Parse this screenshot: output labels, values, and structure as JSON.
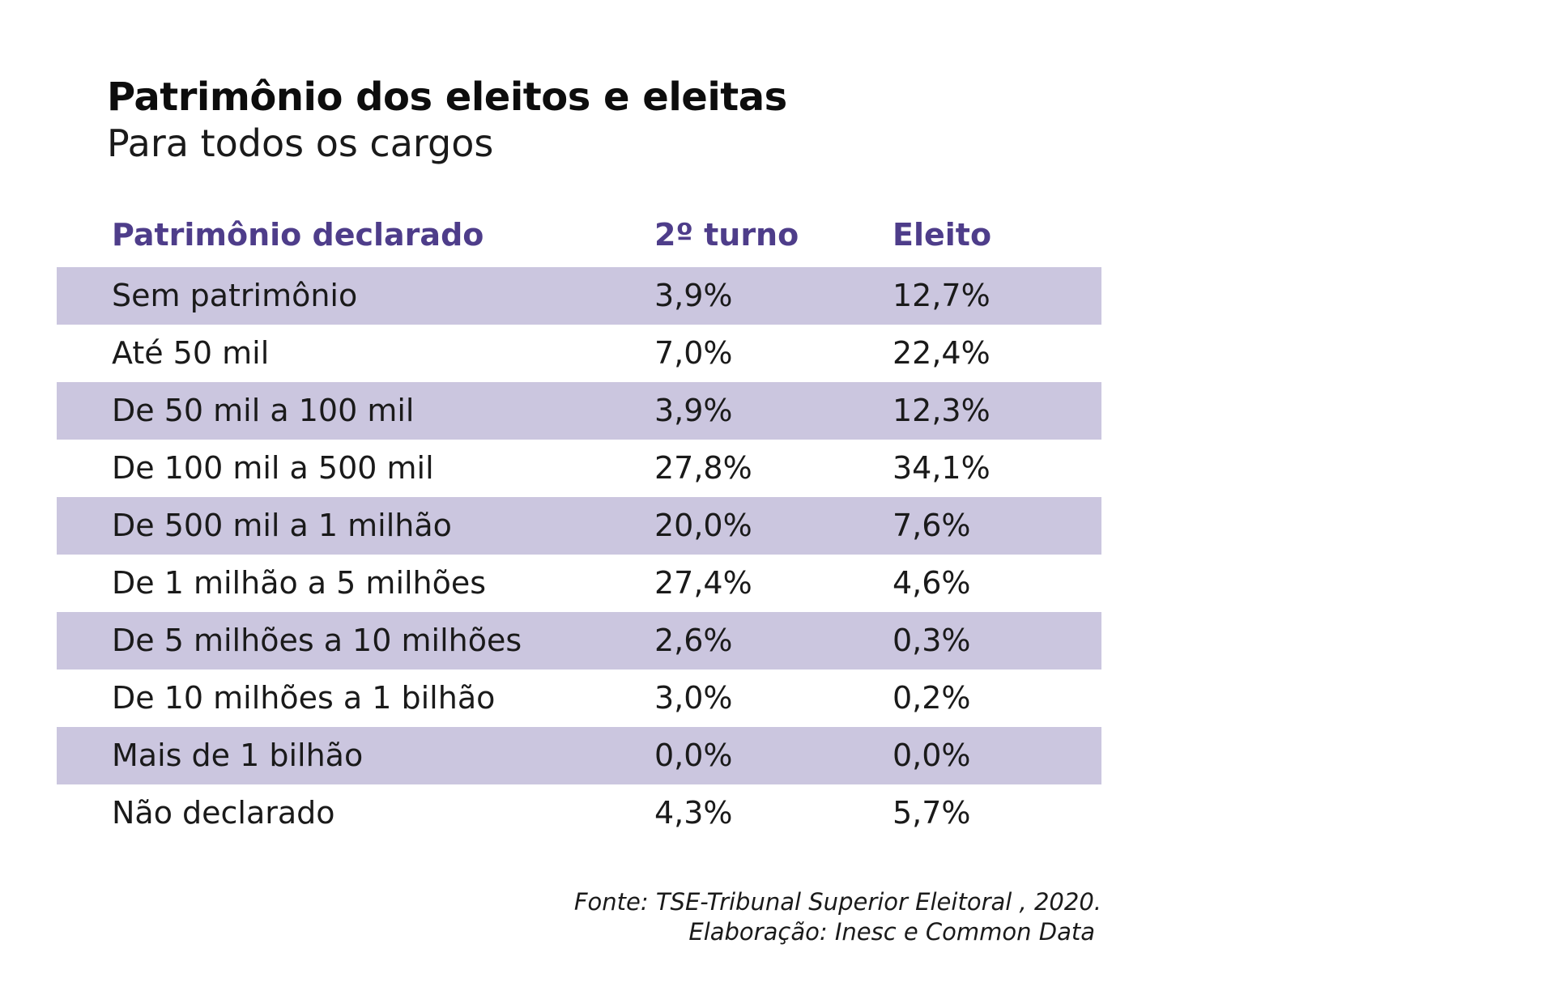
{
  "chart_data": {
    "type": "table",
    "title": "Patrimônio dos eleitos e eleitas",
    "subtitle": "Para todos os cargos",
    "columns": [
      "Patrimônio declarado",
      "2º turno",
      "Eleito"
    ],
    "rows": [
      {
        "label": "Sem patrimônio",
        "turno2": "3,9%",
        "eleito": "12,7%"
      },
      {
        "label": "Até 50 mil",
        "turno2": "7,0%",
        "eleito": "22,4%"
      },
      {
        "label": "De 50 mil a 100 mil",
        "turno2": "3,9%",
        "eleito": "12,3%"
      },
      {
        "label": "De 100 mil a 500 mil",
        "turno2": "27,8%",
        "eleito": "34,1%"
      },
      {
        "label": "De 500 mil a 1 milhão",
        "turno2": "20,0%",
        "eleito": "7,6%"
      },
      {
        "label": "De 1 milhão a 5 milhões",
        "turno2": "27,4%",
        "eleito": "4,6%"
      },
      {
        "label": "De 5 milhões a 10 milhões",
        "turno2": "2,6%",
        "eleito": "0,3%"
      },
      {
        "label": "De 10 milhões a 1 bilhão",
        "turno2": "3,0%",
        "eleito": "0,2%"
      },
      {
        "label": "Mais de 1 bilhão",
        "turno2": "0,0%",
        "eleito": "0,0%"
      },
      {
        "label": "Não declarado",
        "turno2": "4,3%",
        "eleito": "5,7%"
      }
    ],
    "source": "Fonte: TSE-Tribunal Superior Eleitoral , 2020.",
    "credit": "Elaboração: Inesc e Common Data"
  },
  "colors": {
    "header_text": "#4e3d8a",
    "row_shade": "#cbc6df",
    "text": "#1a1a1a"
  }
}
